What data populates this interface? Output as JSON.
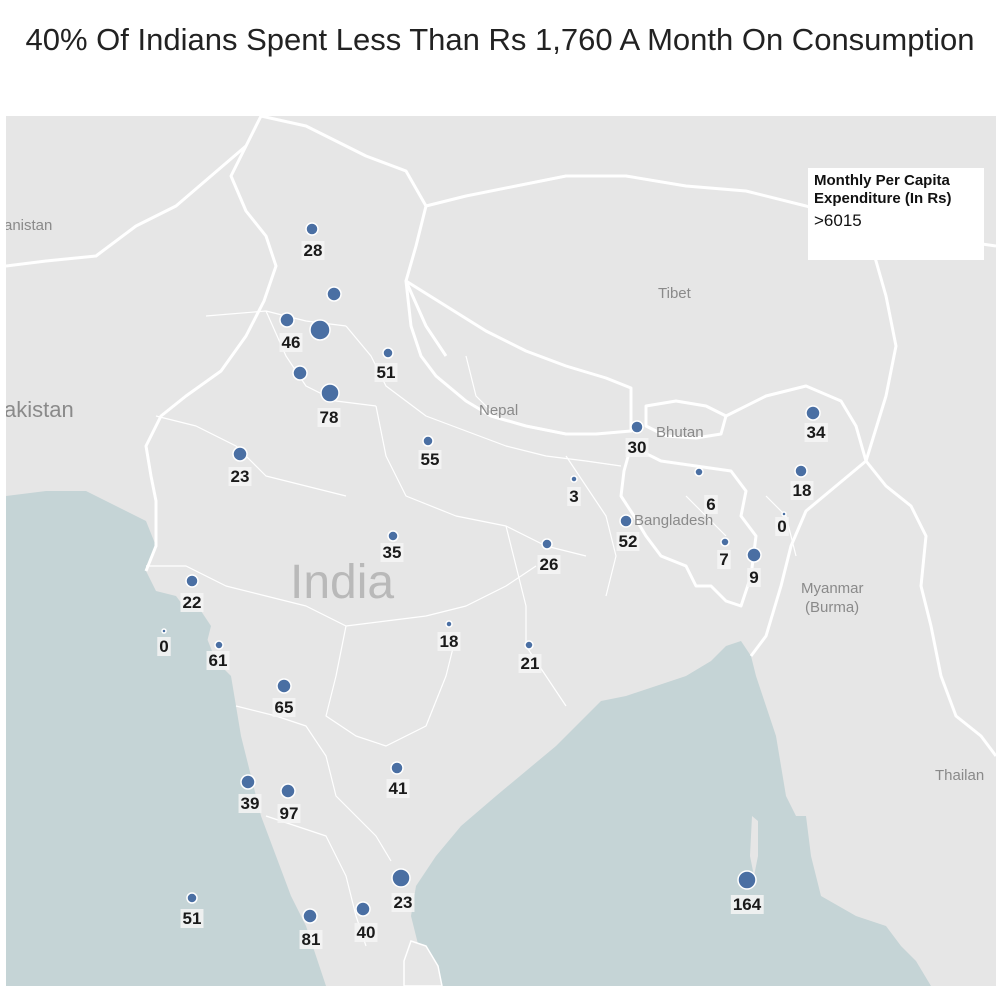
{
  "title": "40% Of Indians Spent Less Than Rs 1,760 A Month On Consumption",
  "legend": {
    "title": "Monthly Per Capita Expenditure (In Rs)",
    "value": ">6015"
  },
  "map_labels": {
    "afghanistan": "anistan",
    "pakistan": "akistan",
    "tibet": "Tibet",
    "nepal": "Nepal",
    "bhutan": "Bhutan",
    "bangladesh": "Bangladesh",
    "india": "India",
    "myanmar_line1": "Myanmar",
    "myanmar_line2": "(Burma)",
    "thailand": "Thailan"
  },
  "colors": {
    "land": "#e6e6e6",
    "sea": "#c5d4d6",
    "dot": "#4a6fa3",
    "border": "#ffffff"
  },
  "chart_data": {
    "type": "scatter",
    "points": [
      {
        "label": "28",
        "r": 6
      },
      {
        "label": "",
        "r": 7
      },
      {
        "label": "46",
        "r": 7
      },
      {
        "label": "",
        "r": 10
      },
      {
        "label": "51",
        "r": 5
      },
      {
        "label": "",
        "r": 7
      },
      {
        "label": "78",
        "r": 9
      },
      {
        "label": "23",
        "r": 7
      },
      {
        "label": "55",
        "r": 5
      },
      {
        "label": "3",
        "r": 3
      },
      {
        "label": "30",
        "r": 6
      },
      {
        "label": "34",
        "r": 7
      },
      {
        "label": "18",
        "r": 6
      },
      {
        "label": "6",
        "r": 4
      },
      {
        "label": "0",
        "r": 2
      },
      {
        "label": "52",
        "r": 6
      },
      {
        "label": "35",
        "r": 5
      },
      {
        "label": "26",
        "r": 5
      },
      {
        "label": "7",
        "r": 4
      },
      {
        "label": "9",
        "r": 7
      },
      {
        "label": "22",
        "r": 6
      },
      {
        "label": "0",
        "r": 2
      },
      {
        "label": "61",
        "r": 4
      },
      {
        "label": "18",
        "r": 3
      },
      {
        "label": "21",
        "r": 4
      },
      {
        "label": "65",
        "r": 7
      },
      {
        "label": "39",
        "r": 7
      },
      {
        "label": "97",
        "r": 7
      },
      {
        "label": "41",
        "r": 6
      },
      {
        "label": "51",
        "r": 5
      },
      {
        "label": "23",
        "r": 9
      },
      {
        "label": "164",
        "r": 9
      },
      {
        "label": "81",
        "r": 7
      },
      {
        "label": "40",
        "r": 7
      }
    ]
  }
}
